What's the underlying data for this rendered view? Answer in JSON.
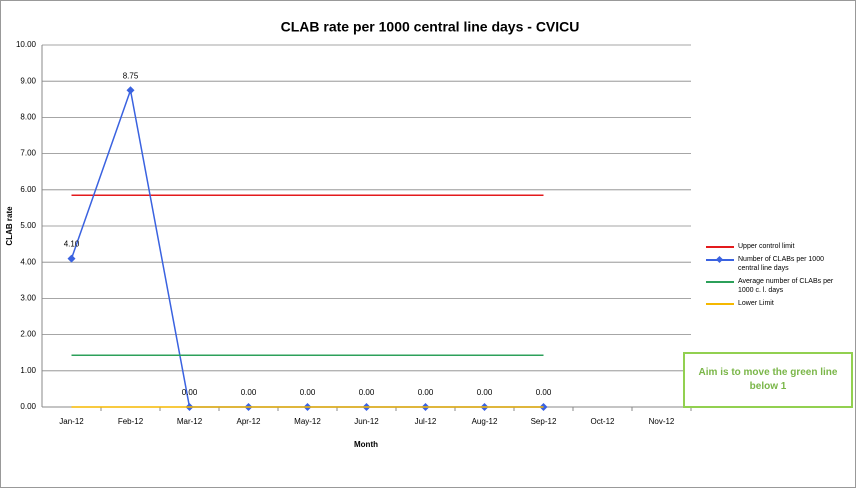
{
  "chart_data": {
    "type": "line",
    "title": "CLAB rate per 1000 central line days - CVICU",
    "x_label": "Month",
    "y_label": "CLAB rate",
    "categories": [
      "Jan-12",
      "Feb-12",
      "Mar-12",
      "Apr-12",
      "May-12",
      "Jun-12",
      "Jul-12",
      "Aug-12",
      "Sep-12",
      "Oct-12",
      "Nov-12"
    ],
    "series": [
      {
        "name": "Upper control limit",
        "color": "#e31a1c",
        "values": [
          5.85,
          5.85,
          5.85,
          5.85,
          5.85,
          5.85,
          5.85,
          5.85,
          5.85,
          null,
          null
        ]
      },
      {
        "name": "Number of CLABs per 1000 central line days",
        "color": "#3a62e0",
        "marker": "diamond",
        "values": [
          4.1,
          8.75,
          0,
          0,
          0,
          0,
          0,
          0,
          0,
          null,
          null
        ],
        "value_labels": [
          "4.10",
          "8.75",
          "0.00",
          "0.00",
          "0.00",
          "0.00",
          "0.00",
          "0.00",
          "0.00",
          null,
          null
        ]
      },
      {
        "name": "Average number of CLABs per 1000 c. l. days",
        "color": "#2ca05a",
        "values": [
          1.43,
          1.43,
          1.43,
          1.43,
          1.43,
          1.43,
          1.43,
          1.43,
          1.43,
          null,
          null
        ]
      },
      {
        "name": "Lower Limit",
        "color": "#f5b800",
        "values": [
          0,
          0,
          0,
          0,
          0,
          0,
          0,
          0,
          0,
          null,
          null
        ]
      }
    ],
    "ylim": [
      0,
      10
    ],
    "yticks": [
      {
        "value": 0,
        "label": "0.00"
      },
      {
        "value": 1,
        "label": "1.00"
      },
      {
        "value": 2,
        "label": "2.00"
      },
      {
        "value": 3,
        "label": "3.00"
      },
      {
        "value": 4,
        "label": "4.00"
      },
      {
        "value": 5,
        "label": "5.00"
      },
      {
        "value": 6,
        "label": "6.00"
      },
      {
        "value": 7,
        "label": "7.00"
      },
      {
        "value": 8,
        "label": "8.00"
      },
      {
        "value": 9,
        "label": "9.00"
      },
      {
        "value": 10,
        "label": "10.00"
      }
    ],
    "grid": true,
    "legend": "right",
    "annotation": "Aim is to move the green line below 1"
  }
}
